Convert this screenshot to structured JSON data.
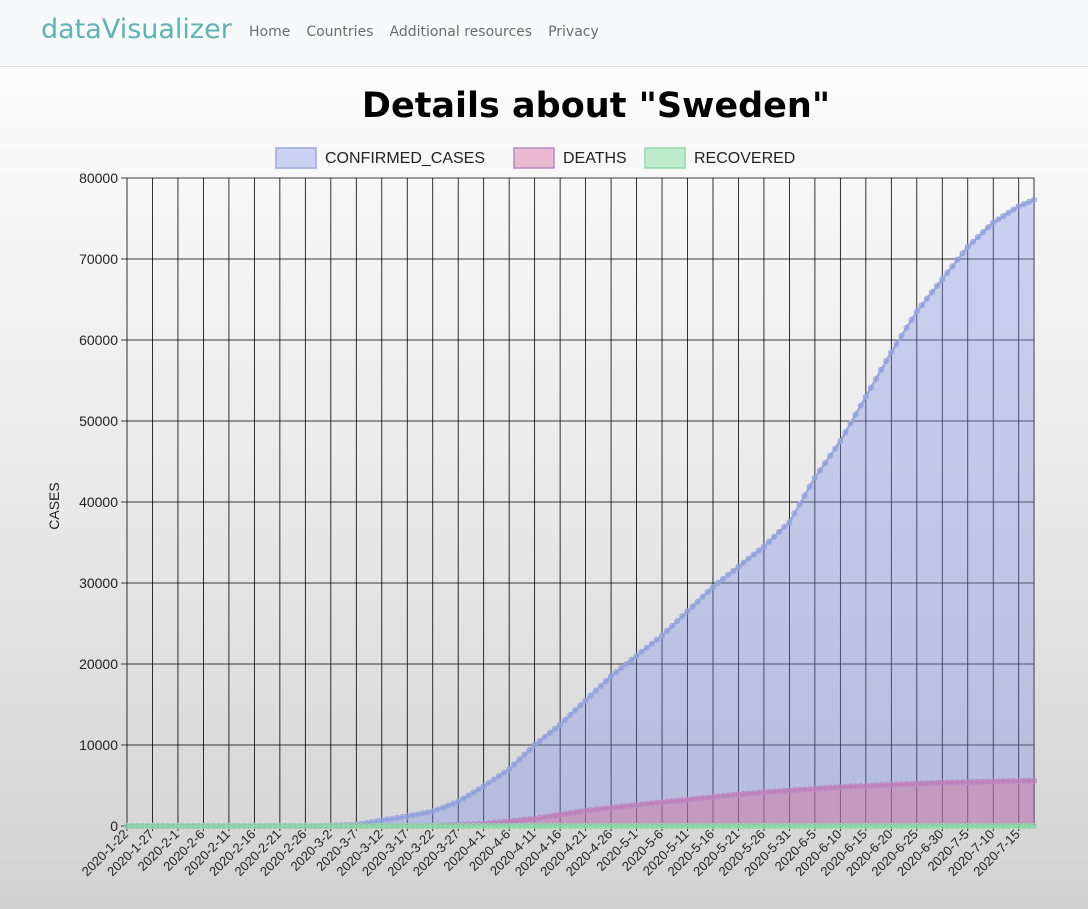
{
  "nav": {
    "brand": "dataVisualizer",
    "links": [
      "Home",
      "Countries",
      "Additional resources",
      "Privacy"
    ]
  },
  "page": {
    "title": "Details about \"Sweden\""
  },
  "colors": {
    "confirmed_fill": "rgba(120,140,230,0.35)",
    "confirmed_line": "#9aa8dc",
    "deaths_fill": "rgba(215,110,160,0.45)",
    "deaths_line": "#b58ac9",
    "recovered_fill": "rgba(120,220,150,0.45)",
    "recovered_line": "#8fd9a8",
    "grid": "#000000"
  },
  "chart_data": {
    "type": "area",
    "ylabel": "CASES",
    "xlabel": "",
    "ylim": [
      0,
      80000
    ],
    "yticks": [
      0,
      10000,
      20000,
      30000,
      40000,
      50000,
      60000,
      70000,
      80000
    ],
    "grid": true,
    "legend_position": "top-center",
    "x_start_date": "2020-1-22",
    "x_end_date": "2020-7-18",
    "tick_labels": [
      "2020-1-22",
      "2020-1-27",
      "2020-2-1",
      "2020-2-6",
      "2020-2-11",
      "2020-2-16",
      "2020-2-21",
      "2020-2-26",
      "2020-3-2",
      "2020-3-7",
      "2020-3-12",
      "2020-3-17",
      "2020-3-22",
      "2020-3-27",
      "2020-4-1",
      "2020-4-6",
      "2020-4-11",
      "2020-4-16",
      "2020-4-21",
      "2020-4-26",
      "2020-5-1",
      "2020-5-6",
      "2020-5-11",
      "2020-5-16",
      "2020-5-21",
      "2020-5-26",
      "2020-5-31",
      "2020-6-5",
      "2020-6-10",
      "2020-6-15",
      "2020-6-20",
      "2020-6-25",
      "2020-6-30",
      "2020-7-5",
      "2020-7-10",
      "2020-7-15"
    ],
    "series": [
      {
        "name": "CONFIRMED_CASES",
        "anchors": [
          [
            "2020-1-22",
            0
          ],
          [
            "2020-2-28",
            0
          ],
          [
            "2020-3-7",
            150
          ],
          [
            "2020-3-12",
            700
          ],
          [
            "2020-3-17",
            1200
          ],
          [
            "2020-3-22",
            1800
          ],
          [
            "2020-3-27",
            3000
          ],
          [
            "2020-4-1",
            4900
          ],
          [
            "2020-4-6",
            7000
          ],
          [
            "2020-4-11",
            10000
          ],
          [
            "2020-4-16",
            12500
          ],
          [
            "2020-4-21",
            15500
          ],
          [
            "2020-4-26",
            18500
          ],
          [
            "2020-5-1",
            21000
          ],
          [
            "2020-5-6",
            23500
          ],
          [
            "2020-5-11",
            26500
          ],
          [
            "2020-5-16",
            29500
          ],
          [
            "2020-5-21",
            32000
          ],
          [
            "2020-5-26",
            34500
          ],
          [
            "2020-5-31",
            37500
          ],
          [
            "2020-6-5",
            43000
          ],
          [
            "2020-6-10",
            47500
          ],
          [
            "2020-6-15",
            53000
          ],
          [
            "2020-6-20",
            58500
          ],
          [
            "2020-6-25",
            63500
          ],
          [
            "2020-6-30",
            67500
          ],
          [
            "2020-7-5",
            71500
          ],
          [
            "2020-7-10",
            74500
          ],
          [
            "2020-7-15",
            76500
          ],
          [
            "2020-7-18",
            77300
          ]
        ]
      },
      {
        "name": "DEATHS",
        "anchors": [
          [
            "2020-1-22",
            0
          ],
          [
            "2020-3-10",
            0
          ],
          [
            "2020-3-22",
            40
          ],
          [
            "2020-4-1",
            250
          ],
          [
            "2020-4-11",
            900
          ],
          [
            "2020-4-21",
            1900
          ],
          [
            "2020-5-1",
            2600
          ],
          [
            "2020-5-11",
            3250
          ],
          [
            "2020-5-21",
            3900
          ],
          [
            "2020-5-31",
            4400
          ],
          [
            "2020-6-10",
            4800
          ],
          [
            "2020-6-20",
            5100
          ],
          [
            "2020-6-30",
            5350
          ],
          [
            "2020-7-10",
            5500
          ],
          [
            "2020-7-18",
            5600
          ]
        ]
      },
      {
        "name": "RECOVERED",
        "anchors": [
          [
            "2020-1-22",
            0
          ],
          [
            "2020-7-18",
            0
          ]
        ]
      }
    ]
  }
}
